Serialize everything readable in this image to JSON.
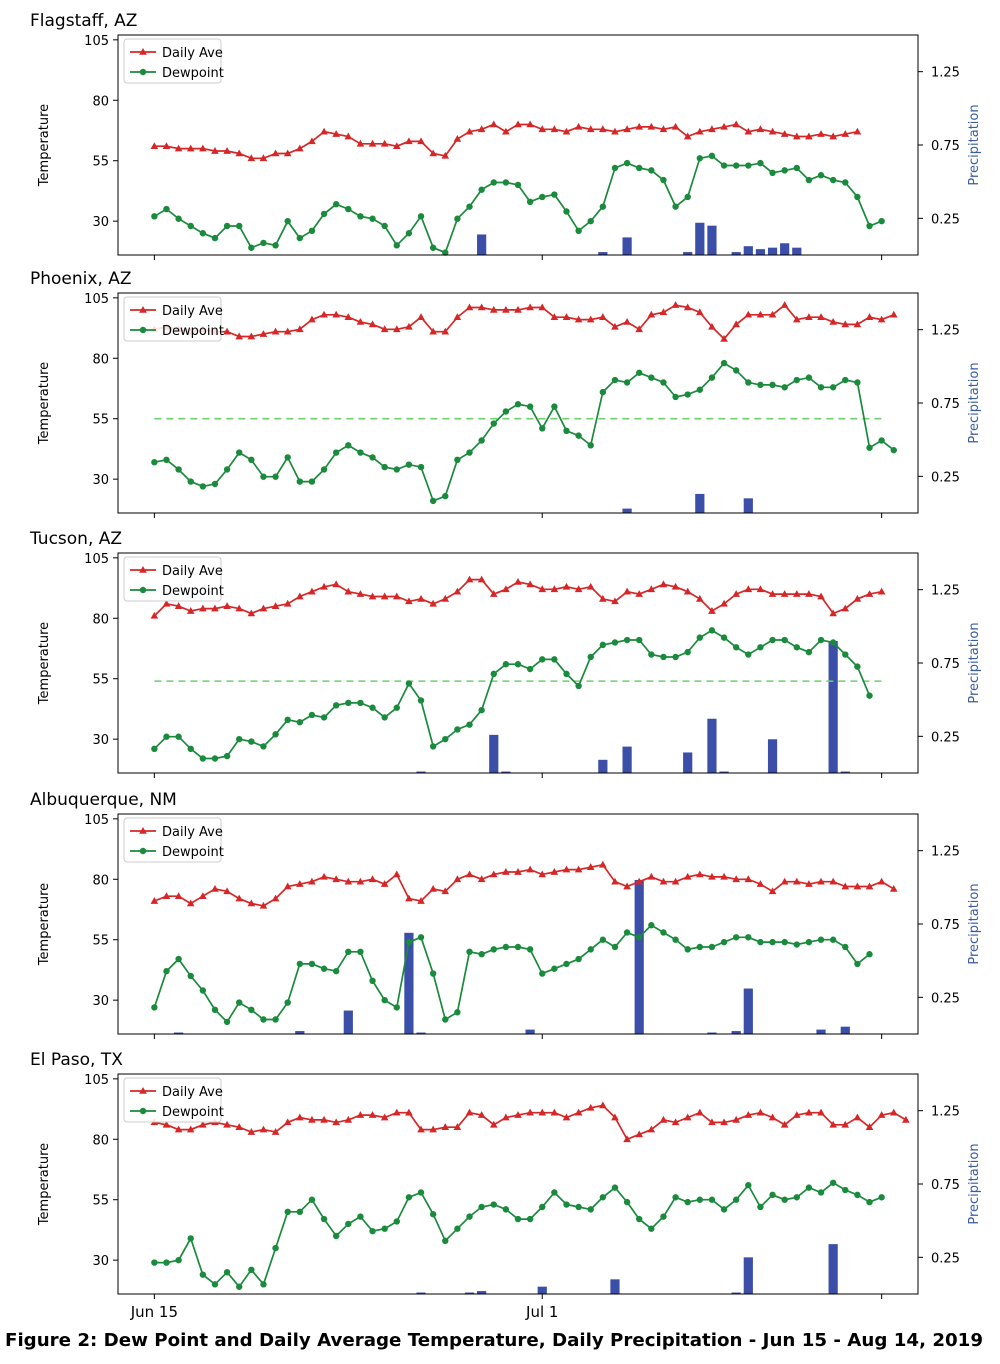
{
  "figure": {
    "caption": "Figure 2: Dew Point and Daily Average Temperature, Daily Precipitation - Jun 15 - Aug 14, 2019",
    "x_ticks": [
      {
        "day": 0,
        "label": "Jun 15"
      },
      {
        "day": 16,
        "label": "Jul 1"
      }
    ]
  },
  "colors": {
    "daily_ave": "#d62728",
    "dewpoint": "#1a8a3c",
    "precip": "#3b4ea8",
    "threshold": "#6fcf6f",
    "right_axis": "#3b5ba5"
  },
  "chart_data": [
    {
      "type": "line",
      "title": "Flagstaff, AZ",
      "ylabel": "Temperature",
      "y2label": "Precipitation",
      "ylim": [
        16,
        107
      ],
      "y2lim": [
        0,
        1.5
      ],
      "yticks": [
        30,
        55,
        80,
        105
      ],
      "y2ticks": [
        0.25,
        0.75,
        1.25
      ],
      "xlim": [
        -1.5,
        31.5
      ],
      "legend": {
        "position": "top-left",
        "entries": [
          "Daily Ave",
          "Dewpoint"
        ]
      },
      "threshold": null,
      "x_start": 0,
      "x_step": 0.5,
      "series": [
        {
          "name": "Daily Ave",
          "values": [
            61,
            61,
            60,
            60,
            60,
            59,
            59,
            58,
            56,
            56,
            58,
            58,
            60,
            63,
            67,
            66,
            65,
            62,
            62,
            62,
            61,
            63,
            63,
            58,
            57,
            64,
            67,
            68,
            70,
            67,
            70,
            70,
            68,
            68,
            67,
            69,
            68,
            68,
            67,
            68,
            69,
            69,
            68,
            69,
            65,
            67,
            68,
            69,
            70,
            67,
            68,
            67,
            66,
            65,
            65,
            66,
            65,
            66,
            67
          ]
        },
        {
          "name": "Dewpoint",
          "values": [
            32,
            35,
            31,
            28,
            25,
            23,
            28,
            28,
            19,
            21,
            20,
            30,
            23,
            26,
            33,
            37,
            35,
            32,
            31,
            28,
            20,
            25,
            32,
            19,
            17,
            31,
            36,
            43,
            46,
            46,
            45,
            38,
            40,
            41,
            34,
            26,
            30,
            36,
            52,
            54,
            52,
            51,
            47,
            36,
            40,
            56,
            57,
            53,
            53,
            53,
            54,
            50,
            51,
            52,
            47,
            49,
            47,
            46,
            40,
            28,
            30
          ]
        },
        {
          "name": "Precipitation",
          "values": [
            {
              "day": 13.5,
              "v": 0.14
            },
            {
              "day": 18.5,
              "v": 0.02
            },
            {
              "day": 19.5,
              "v": 0.12
            },
            {
              "day": 22.0,
              "v": 0.02
            },
            {
              "day": 22.5,
              "v": 0.22
            },
            {
              "day": 23.0,
              "v": 0.2
            },
            {
              "day": 24.0,
              "v": 0.02
            },
            {
              "day": 24.5,
              "v": 0.06
            },
            {
              "day": 25.0,
              "v": 0.04
            },
            {
              "day": 25.5,
              "v": 0.05
            },
            {
              "day": 26.0,
              "v": 0.08
            },
            {
              "day": 26.5,
              "v": 0.05
            }
          ]
        }
      ]
    },
    {
      "type": "line",
      "title": "Phoenix, AZ",
      "ylabel": "Temperature",
      "y2label": "Precipitation",
      "ylim": [
        16,
        107
      ],
      "y2lim": [
        0,
        1.5
      ],
      "yticks": [
        30,
        55,
        80,
        105
      ],
      "y2ticks": [
        0.25,
        0.75,
        1.25
      ],
      "xlim": [
        -1.5,
        31.5
      ],
      "legend": {
        "position": "top-left",
        "entries": [
          "Daily Ave",
          "Dewpoint"
        ]
      },
      "threshold": 55,
      "x_start": 0,
      "x_step": 0.5,
      "series": [
        {
          "name": "Daily Ave",
          "values": [
            92,
            93,
            92,
            91,
            92,
            91,
            91,
            89,
            89,
            90,
            91,
            91,
            92,
            96,
            98,
            98,
            97,
            95,
            94,
            92,
            92,
            93,
            97,
            91,
            91,
            97,
            101,
            101,
            100,
            100,
            100,
            101,
            101,
            97,
            97,
            96,
            96,
            97,
            93,
            95,
            92,
            98,
            99,
            102,
            101,
            99,
            93,
            88,
            94,
            98,
            98,
            98,
            102,
            96,
            97,
            97,
            95,
            94,
            94,
            97,
            96,
            98
          ]
        },
        {
          "name": "Dewpoint",
          "values": [
            37,
            38,
            34,
            29,
            27,
            28,
            34,
            41,
            38,
            31,
            31,
            39,
            29,
            29,
            34,
            41,
            44,
            41,
            39,
            35,
            34,
            36,
            35,
            21,
            23,
            38,
            41,
            46,
            53,
            58,
            61,
            60,
            51,
            60,
            50,
            48,
            44,
            66,
            71,
            70,
            74,
            72,
            70,
            64,
            65,
            67,
            72,
            78,
            75,
            70,
            69,
            69,
            68,
            71,
            72,
            68,
            68,
            71,
            70,
            43,
            46,
            42
          ]
        },
        {
          "name": "Precipitation",
          "values": [
            {
              "day": 19.5,
              "v": 0.03
            },
            {
              "day": 22.5,
              "v": 0.13
            },
            {
              "day": 24.5,
              "v": 0.1
            }
          ]
        }
      ]
    },
    {
      "type": "line",
      "title": "Tucson, AZ",
      "ylabel": "Temperature",
      "y2label": "Precipitation",
      "ylim": [
        16,
        107
      ],
      "y2lim": [
        0,
        1.5
      ],
      "yticks": [
        30,
        55,
        80,
        105
      ],
      "y2ticks": [
        0.25,
        0.75,
        1.25
      ],
      "xlim": [
        -1.5,
        31.5
      ],
      "legend": {
        "position": "top-left",
        "entries": [
          "Daily Ave",
          "Dewpoint"
        ]
      },
      "threshold": 54,
      "x_start": 0,
      "x_step": 0.5,
      "series": [
        {
          "name": "Daily Ave",
          "values": [
            81,
            86,
            85,
            83,
            84,
            84,
            85,
            84,
            82,
            84,
            85,
            86,
            89,
            91,
            93,
            94,
            91,
            90,
            89,
            89,
            89,
            87,
            88,
            86,
            88,
            91,
            96,
            96,
            90,
            92,
            95,
            94,
            92,
            92,
            93,
            92,
            93,
            88,
            87,
            91,
            90,
            92,
            94,
            93,
            91,
            88,
            83,
            86,
            90,
            92,
            92,
            90,
            90,
            90,
            90,
            89,
            82,
            84,
            88,
            90,
            91
          ]
        },
        {
          "name": "Dewpoint",
          "values": [
            26,
            31,
            31,
            26,
            22,
            22,
            23,
            30,
            29,
            27,
            32,
            38,
            37,
            40,
            39,
            44,
            45,
            45,
            43,
            39,
            43,
            53,
            46,
            27,
            30,
            34,
            36,
            42,
            57,
            61,
            61,
            59,
            63,
            63,
            57,
            52,
            64,
            69,
            70,
            71,
            71,
            65,
            64,
            64,
            66,
            72,
            75,
            72,
            68,
            65,
            68,
            71,
            71,
            68,
            66,
            71,
            70,
            65,
            60,
            48
          ]
        },
        {
          "name": "Precipitation",
          "values": [
            {
              "day": 11.0,
              "v": 0.01
            },
            {
              "day": 14.0,
              "v": 0.26
            },
            {
              "day": 14.5,
              "v": 0.01
            },
            {
              "day": 18.5,
              "v": 0.09
            },
            {
              "day": 19.5,
              "v": 0.18
            },
            {
              "day": 22.0,
              "v": 0.14
            },
            {
              "day": 23.0,
              "v": 0.37
            },
            {
              "day": 23.5,
              "v": 0.01
            },
            {
              "day": 25.5,
              "v": 0.23
            },
            {
              "day": 28.0,
              "v": 0.9
            },
            {
              "day": 28.5,
              "v": 0.01
            }
          ]
        }
      ]
    },
    {
      "type": "line",
      "title": "Albuquerque, NM",
      "ylabel": "Temperature",
      "y2label": "Precipitation",
      "ylim": [
        16,
        107
      ],
      "y2lim": [
        0,
        1.5
      ],
      "yticks": [
        30,
        55,
        80,
        105
      ],
      "y2ticks": [
        0.25,
        0.75,
        1.25
      ],
      "xlim": [
        -1.5,
        31.5
      ],
      "legend": {
        "position": "top-left",
        "entries": [
          "Daily Ave",
          "Dewpoint"
        ]
      },
      "threshold": null,
      "x_start": 0,
      "x_step": 0.5,
      "series": [
        {
          "name": "Daily Ave",
          "values": [
            71,
            73,
            73,
            70,
            73,
            76,
            75,
            72,
            70,
            69,
            72,
            77,
            78,
            79,
            81,
            80,
            79,
            79,
            80,
            78,
            82,
            72,
            71,
            76,
            75,
            80,
            82,
            80,
            82,
            83,
            83,
            84,
            82,
            83,
            84,
            84,
            85,
            86,
            79,
            77,
            79,
            81,
            79,
            79,
            81,
            82,
            81,
            81,
            80,
            80,
            78,
            75,
            79,
            79,
            78,
            79,
            79,
            77,
            77,
            77,
            79,
            76
          ]
        },
        {
          "name": "Dewpoint",
          "values": [
            27,
            42,
            47,
            40,
            34,
            26,
            21,
            29,
            26,
            22,
            22,
            29,
            45,
            45,
            43,
            42,
            50,
            50,
            38,
            30,
            27,
            54,
            56,
            41,
            22,
            25,
            50,
            49,
            51,
            52,
            52,
            51,
            41,
            43,
            45,
            47,
            51,
            55,
            52,
            58,
            56,
            61,
            58,
            55,
            51,
            52,
            52,
            54,
            56,
            56,
            54,
            54,
            54,
            53,
            54,
            55,
            55,
            52,
            45,
            49
          ]
        },
        {
          "name": "Precipitation",
          "values": [
            {
              "day": 1.0,
              "v": 0.01
            },
            {
              "day": 6.0,
              "v": 0.02
            },
            {
              "day": 8.0,
              "v": 0.16
            },
            {
              "day": 10.5,
              "v": 0.69
            },
            {
              "day": 11.0,
              "v": 0.01
            },
            {
              "day": 15.5,
              "v": 0.03
            },
            {
              "day": 20.0,
              "v": 1.05
            },
            {
              "day": 23.0,
              "v": 0.01
            },
            {
              "day": 24.0,
              "v": 0.02
            },
            {
              "day": 24.5,
              "v": 0.31
            },
            {
              "day": 27.5,
              "v": 0.03
            },
            {
              "day": 28.5,
              "v": 0.05
            }
          ]
        }
      ]
    },
    {
      "type": "line",
      "title": "El Paso, TX",
      "ylabel": "Temperature",
      "y2label": "Precipitation",
      "ylim": [
        16,
        107
      ],
      "y2lim": [
        0,
        1.5
      ],
      "yticks": [
        30,
        55,
        80,
        105
      ],
      "y2ticks": [
        0.25,
        0.75,
        1.25
      ],
      "xlim": [
        -1.5,
        31.5
      ],
      "legend": {
        "position": "top-left",
        "entries": [
          "Daily Ave",
          "Dewpoint"
        ]
      },
      "threshold": null,
      "x_start": 0,
      "x_step": 0.5,
      "series": [
        {
          "name": "Daily Ave",
          "values": [
            87,
            86,
            84,
            84,
            86,
            87,
            86,
            85,
            83,
            84,
            83,
            87,
            89,
            88,
            88,
            87,
            88,
            90,
            90,
            89,
            91,
            91,
            84,
            84,
            85,
            85,
            91,
            90,
            86,
            89,
            90,
            91,
            91,
            91,
            89,
            91,
            93,
            94,
            89,
            80,
            82,
            84,
            88,
            87,
            89,
            91,
            87,
            87,
            88,
            90,
            91,
            89,
            86,
            90,
            91,
            91,
            86,
            86,
            89,
            85,
            90,
            91,
            88
          ]
        },
        {
          "name": "Dewpoint",
          "values": [
            29,
            29,
            30,
            39,
            24,
            20,
            25,
            19,
            26,
            20,
            35,
            50,
            50,
            55,
            47,
            40,
            45,
            48,
            42,
            43,
            46,
            56,
            58,
            49,
            38,
            43,
            48,
            52,
            53,
            51,
            47,
            47,
            52,
            58,
            53,
            52,
            51,
            56,
            60,
            54,
            47,
            43,
            48,
            56,
            54,
            55,
            55,
            51,
            55,
            61,
            52,
            57,
            55,
            56,
            60,
            58,
            62,
            59,
            57,
            54,
            56
          ]
        },
        {
          "name": "Precipitation",
          "values": [
            {
              "day": 11.0,
              "v": 0.01
            },
            {
              "day": 13.0,
              "v": 0.01
            },
            {
              "day": 13.5,
              "v": 0.02
            },
            {
              "day": 16.0,
              "v": 0.05
            },
            {
              "day": 19.0,
              "v": 0.1
            },
            {
              "day": 24.0,
              "v": 0.01
            },
            {
              "day": 24.5,
              "v": 0.25
            },
            {
              "day": 28.0,
              "v": 0.34
            }
          ]
        }
      ]
    }
  ]
}
